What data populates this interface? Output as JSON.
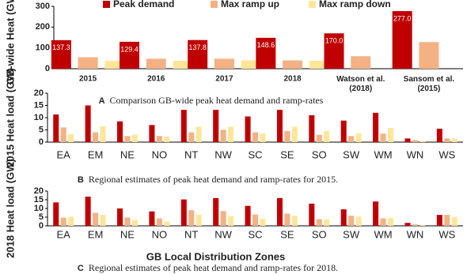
{
  "chart_data": [
    {
      "type": "bar",
      "y_label": "GB-wide Heat (GW)",
      "caption_label": "A",
      "caption": "Comparison GB-wide peak heat demand and ramp-rates",
      "categories": [
        "2015",
        "2016",
        "2017",
        "2018",
        "Watson et al. (2018)",
        "Sansom et al. (2015)"
      ],
      "series": [
        {
          "name": "Peak demand",
          "color": "#c00000",
          "values": [
            137.3,
            129.4,
            137.8,
            148.6,
            170.0,
            277.0
          ],
          "value_labels": [
            "137.3",
            "129.4",
            "137.8",
            "148.6",
            "170.0",
            "277.0"
          ]
        },
        {
          "name": "Max ramp up",
          "color": "#f4b183",
          "values": [
            55,
            48,
            48,
            40,
            60,
            128
          ]
        },
        {
          "name": "Max ramp down",
          "color": "#ffe699",
          "values": [
            38,
            38,
            40,
            38,
            null,
            null
          ]
        }
      ],
      "ylim": [
        0,
        300
      ],
      "yticks": [
        0,
        100,
        200,
        300
      ],
      "legend": "top"
    },
    {
      "type": "bar",
      "y_label": "2015 Heat load (GW)",
      "caption_label": "B",
      "caption": "Regional estimates of peak heat demand and ramp-rates for 2015.",
      "categories": [
        "EA",
        "EM",
        "NE",
        "NO",
        "NT",
        "NW",
        "SC",
        "SE",
        "SO",
        "SW",
        "WM",
        "WN",
        "WS"
      ],
      "series": [
        {
          "name": "Peak demand",
          "color": "#c00000",
          "values": [
            11.3,
            15,
            8.5,
            7,
            13.2,
            13.2,
            10.5,
            13.2,
            11,
            8.8,
            12,
            1.5,
            5.5
          ]
        },
        {
          "name": "Max ramp up",
          "color": "#f4b183",
          "values": [
            6,
            4,
            2.5,
            2.5,
            4,
            5,
            4,
            4.5,
            3,
            2.5,
            3.5,
            0.8,
            1.5
          ]
        },
        {
          "name": "Max ramp down",
          "color": "#ffe699",
          "values": [
            3.2,
            6.5,
            3,
            2.3,
            6.3,
            6.3,
            3.5,
            6.3,
            4.5,
            3.5,
            5.8,
            0.5,
            1.5
          ]
        }
      ],
      "ylim": [
        0,
        20
      ],
      "yticks": [
        0,
        5,
        10,
        15,
        20
      ]
    },
    {
      "type": "bar",
      "y_label": "2018 Heat load (GW)",
      "x_label": "GB Local Distribution Zones",
      "caption_label": "C",
      "caption": "Regional estimates of peak heat demand and ramp-rates for 2018.",
      "categories": [
        "EA",
        "EM",
        "NE",
        "NO",
        "NT",
        "NW",
        "SC",
        "SE",
        "SO",
        "SW",
        "WM",
        "WN",
        "WS"
      ],
      "series": [
        {
          "name": "Peak demand",
          "color": "#c00000",
          "values": [
            13.5,
            16.8,
            10,
            8.3,
            15.2,
            16,
            11.5,
            16,
            12.8,
            9.5,
            14,
            1.7,
            6.3
          ]
        },
        {
          "name": "Max ramp up",
          "color": "#f4b183",
          "values": [
            4.7,
            7.5,
            4.8,
            4.3,
            9,
            8.5,
            6.5,
            7,
            3.8,
            5.8,
            4.3,
            0.8,
            6.3
          ]
        },
        {
          "name": "Max ramp down",
          "color": "#ffe699",
          "values": [
            5.2,
            6.3,
            3.3,
            2.5,
            6.5,
            5.5,
            4,
            5.8,
            3.8,
            5.3,
            4.5,
            0.5,
            5
          ]
        }
      ],
      "ylim": [
        0,
        20
      ],
      "yticks": [
        0,
        5,
        10,
        15,
        20
      ]
    }
  ]
}
